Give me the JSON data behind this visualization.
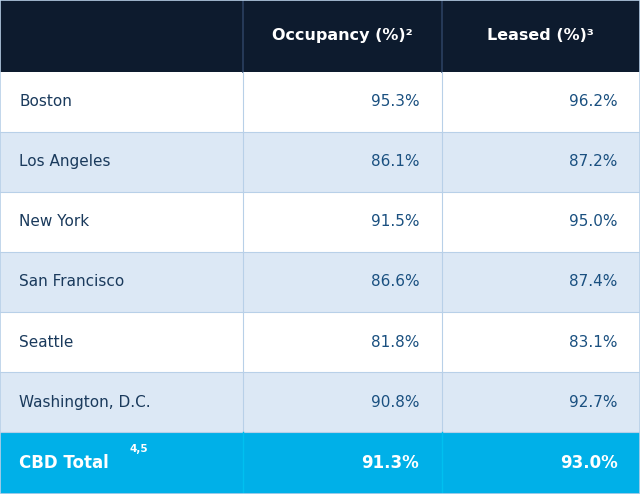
{
  "header": [
    "",
    "Occupancy (%)²",
    "Leased (%)³"
  ],
  "rows": [
    [
      "Boston",
      "95.3%",
      "96.2%"
    ],
    [
      "Los Angeles",
      "86.1%",
      "87.2%"
    ],
    [
      "New York",
      "91.5%",
      "95.0%"
    ],
    [
      "San Francisco",
      "86.6%",
      "87.4%"
    ],
    [
      "Seattle",
      "81.8%",
      "83.1%"
    ],
    [
      "Washington, D.C.",
      "90.8%",
      "92.7%"
    ]
  ],
  "footer": [
    "CBD Total",
    "91.3%",
    "93.0%"
  ],
  "footer_superscript": "4,5",
  "header_bg": "#0d1b2e",
  "header_text": "#ffffff",
  "row_bg_odd": "#ffffff",
  "row_bg_even": "#dce8f5",
  "footer_bg": "#00b0e8",
  "footer_text": "#ffffff",
  "col1_text": "#1a3a5c",
  "col23_text": "#1a5080",
  "border_color": "#b8d0e8",
  "figsize": [
    6.4,
    4.94
  ],
  "dpi": 100
}
